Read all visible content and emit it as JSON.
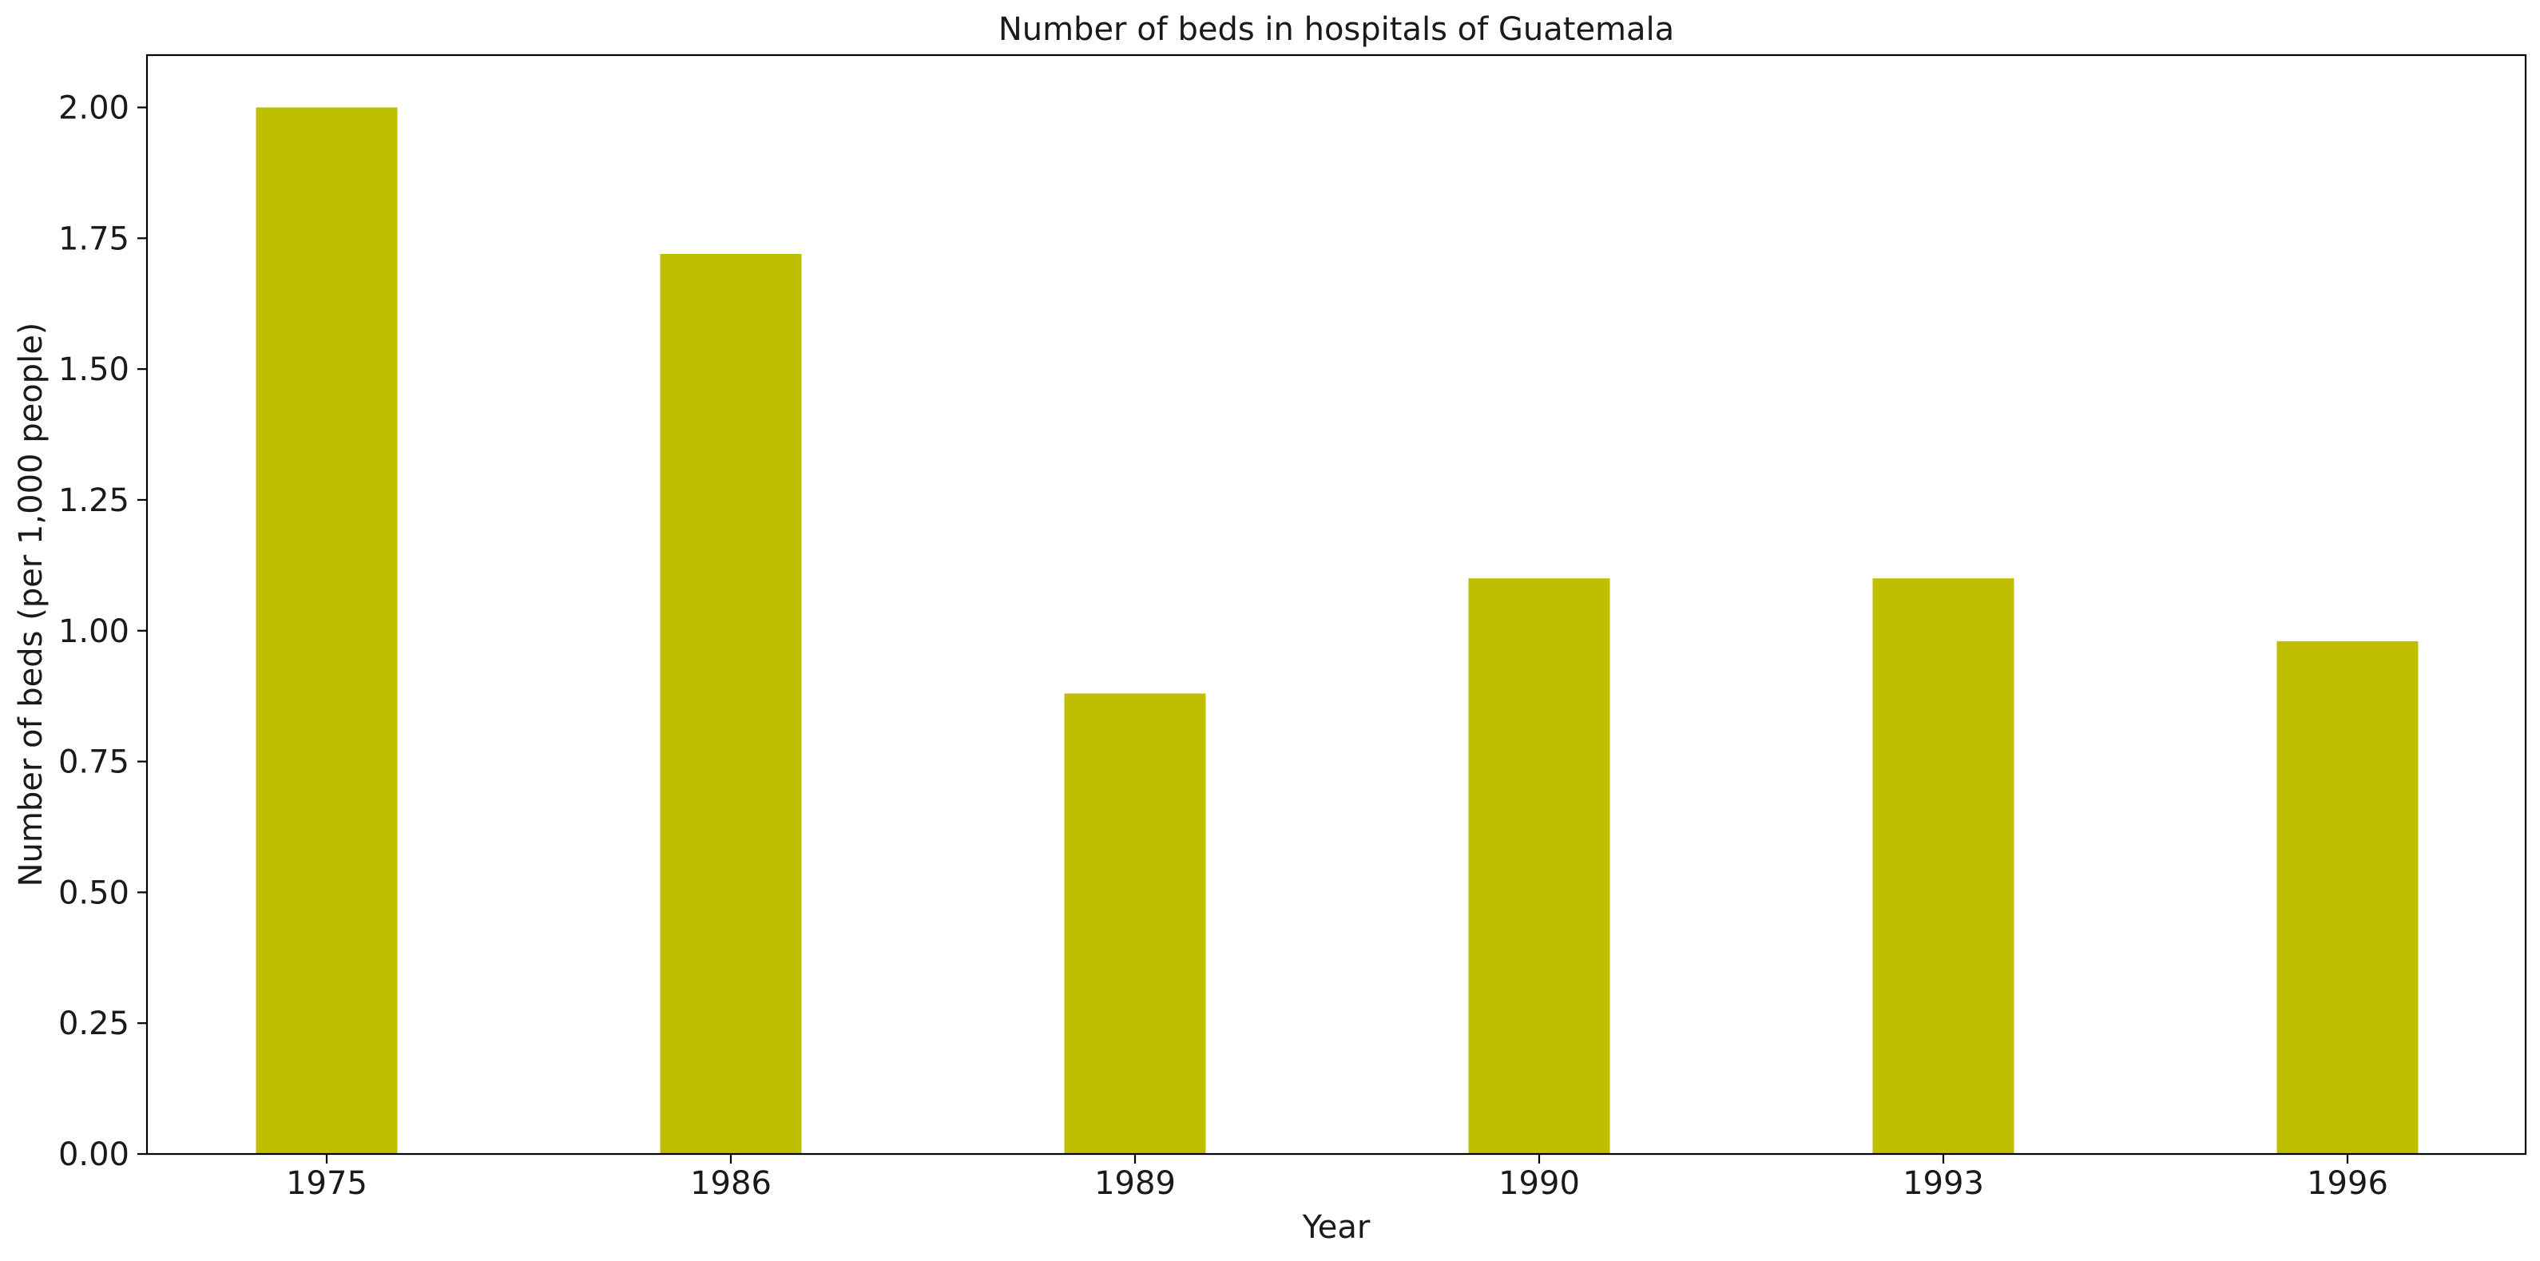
{
  "chart_data": {
    "type": "bar",
    "title": "Number of beds in hospitals of Guatemala",
    "xlabel": "Year",
    "ylabel": "Number of beds (per 1,000 people)",
    "categories": [
      "1975",
      "1986",
      "1989",
      "1990",
      "1993",
      "1996"
    ],
    "values": [
      2.0,
      1.72,
      0.88,
      1.1,
      1.1,
      0.98
    ],
    "ylim": [
      0,
      2.1
    ],
    "yticks": [
      0.0,
      0.25,
      0.5,
      0.75,
      1.0,
      1.25,
      1.5,
      1.75,
      2.0
    ],
    "ytick_labels": [
      "0.00",
      "0.25",
      "0.50",
      "0.75",
      "1.00",
      "1.25",
      "1.50",
      "1.75",
      "2.00"
    ],
    "bar_color": "#bfbf00",
    "grid": false,
    "legend": "none"
  }
}
